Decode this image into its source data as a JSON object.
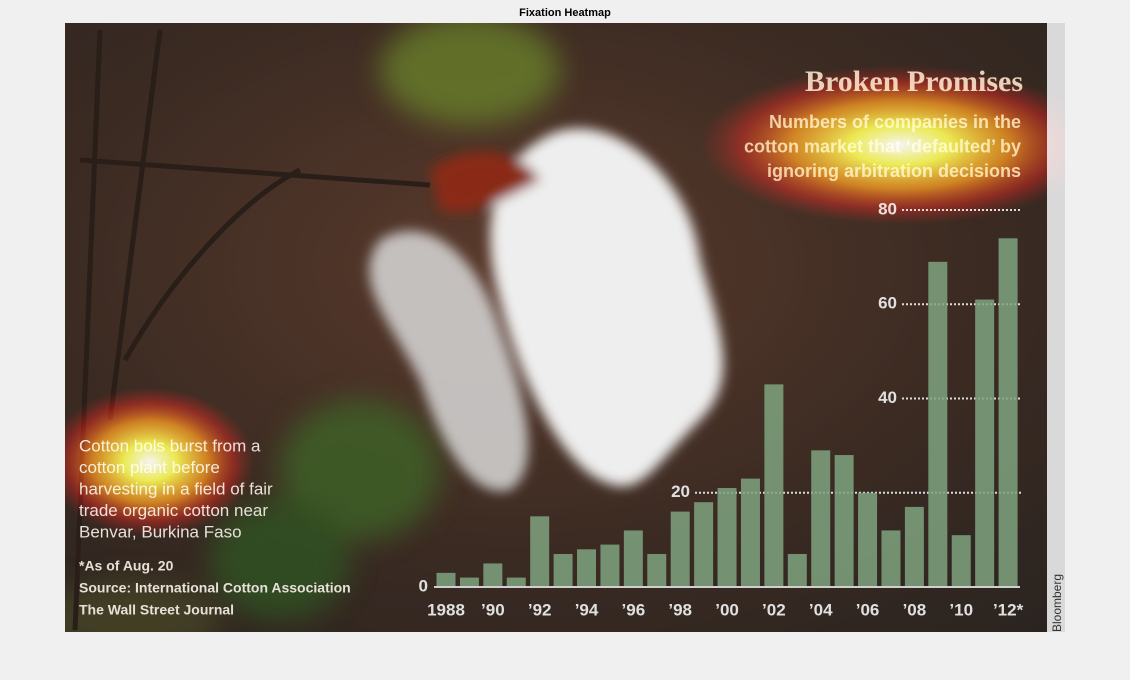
{
  "figure_title": "Fixation Heatmap",
  "chart_data": {
    "type": "bar",
    "title": "Broken Promises",
    "subtitle": [
      "Numbers of companies in the",
      "cotton market that ‘defaulted’ by",
      "ignoring arbitration decisions"
    ],
    "caption": [
      "Cotton bols burst from a",
      "cotton plant before",
      "harvesting in a field of fair",
      "trade organic cotton near",
      "Benvar, Burkina Faso"
    ],
    "notes": [
      "*As of Aug. 20",
      "Source: International Cotton Association",
      "The Wall Street Journal"
    ],
    "credit": "Bloomberg",
    "categories": [
      "1988",
      null,
      "’90",
      null,
      "’92",
      null,
      "’94",
      null,
      "’96",
      null,
      "’98",
      null,
      "’00",
      null,
      "’02",
      null,
      "’04",
      null,
      "’06",
      null,
      "’08",
      null,
      "’10",
      null,
      "’12*"
    ],
    "values": [
      3,
      2,
      5,
      2,
      15,
      7,
      8,
      9,
      12,
      7,
      16,
      18,
      21,
      23,
      43,
      7,
      29,
      28,
      20,
      12,
      17,
      69,
      11,
      61,
      74
    ],
    "color": "#7fa37f",
    "ylim": [
      0,
      80
    ],
    "yticks": [
      0,
      20,
      40,
      60,
      80
    ],
    "grid": true
  }
}
